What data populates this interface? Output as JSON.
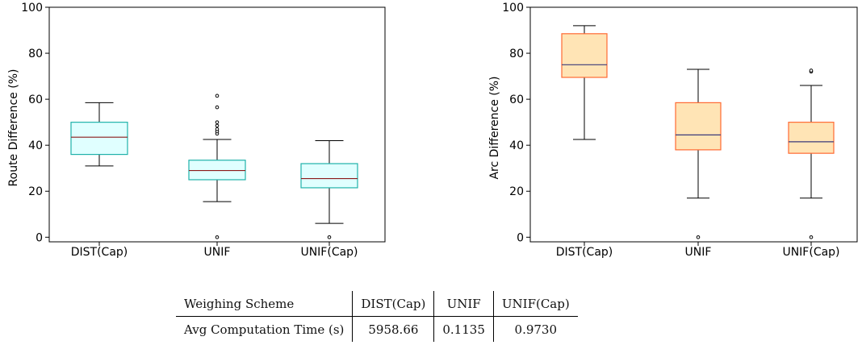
{
  "chart_data": [
    {
      "type": "box",
      "ylabel": "Route Difference (%)",
      "ylim": [
        -2,
        100
      ],
      "yticks": [
        0,
        20,
        40,
        60,
        80,
        100
      ],
      "categories": [
        "DIST(Cap)",
        "UNIF",
        "UNIF(Cap)"
      ],
      "colors": {
        "fill": "#e0ffff",
        "edge": "#20b2aa",
        "median": "#8b1a1a"
      },
      "boxes": [
        {
          "whisker_low": 31,
          "q1": 36,
          "median": 43.5,
          "q3": 50,
          "whisker_high": 58.5,
          "outliers": []
        },
        {
          "whisker_low": 15.5,
          "q1": 25,
          "median": 29,
          "q3": 33.5,
          "whisker_high": 42.5,
          "outliers": [
            0,
            45,
            46,
            47,
            48.5,
            50,
            56.5,
            61.5
          ]
        },
        {
          "whisker_low": 6,
          "q1": 21.5,
          "median": 25.5,
          "q3": 32,
          "whisker_high": 42,
          "outliers": [
            0
          ]
        }
      ]
    },
    {
      "type": "box",
      "ylabel": "Arc Difference (%)",
      "ylim": [
        -2,
        100
      ],
      "yticks": [
        0,
        20,
        40,
        60,
        80,
        100
      ],
      "categories": [
        "DIST(Cap)",
        "UNIF",
        "UNIF(Cap)"
      ],
      "colors": {
        "fill": "#ffe4b5",
        "edge": "#ff6a33",
        "median": "#3a3a7a"
      },
      "boxes": [
        {
          "whisker_low": 42.5,
          "q1": 69.5,
          "median": 75,
          "q3": 88.5,
          "whisker_high": 92,
          "outliers": []
        },
        {
          "whisker_low": 17,
          "q1": 38,
          "median": 44.5,
          "q3": 58.5,
          "whisker_high": 73,
          "outliers": [
            0
          ]
        },
        {
          "whisker_low": 17,
          "q1": 36.5,
          "median": 41.5,
          "q3": 50,
          "whisker_high": 66,
          "outliers": [
            0,
            72,
            72.5
          ]
        }
      ]
    }
  ],
  "table": {
    "header": [
      "Weighing Scheme",
      "DIST(Cap)",
      "UNIF",
      "UNIF(Cap)"
    ],
    "row": [
      "Avg Computation Time (s)",
      "5958.66",
      "0.1135",
      "0.9730"
    ]
  }
}
